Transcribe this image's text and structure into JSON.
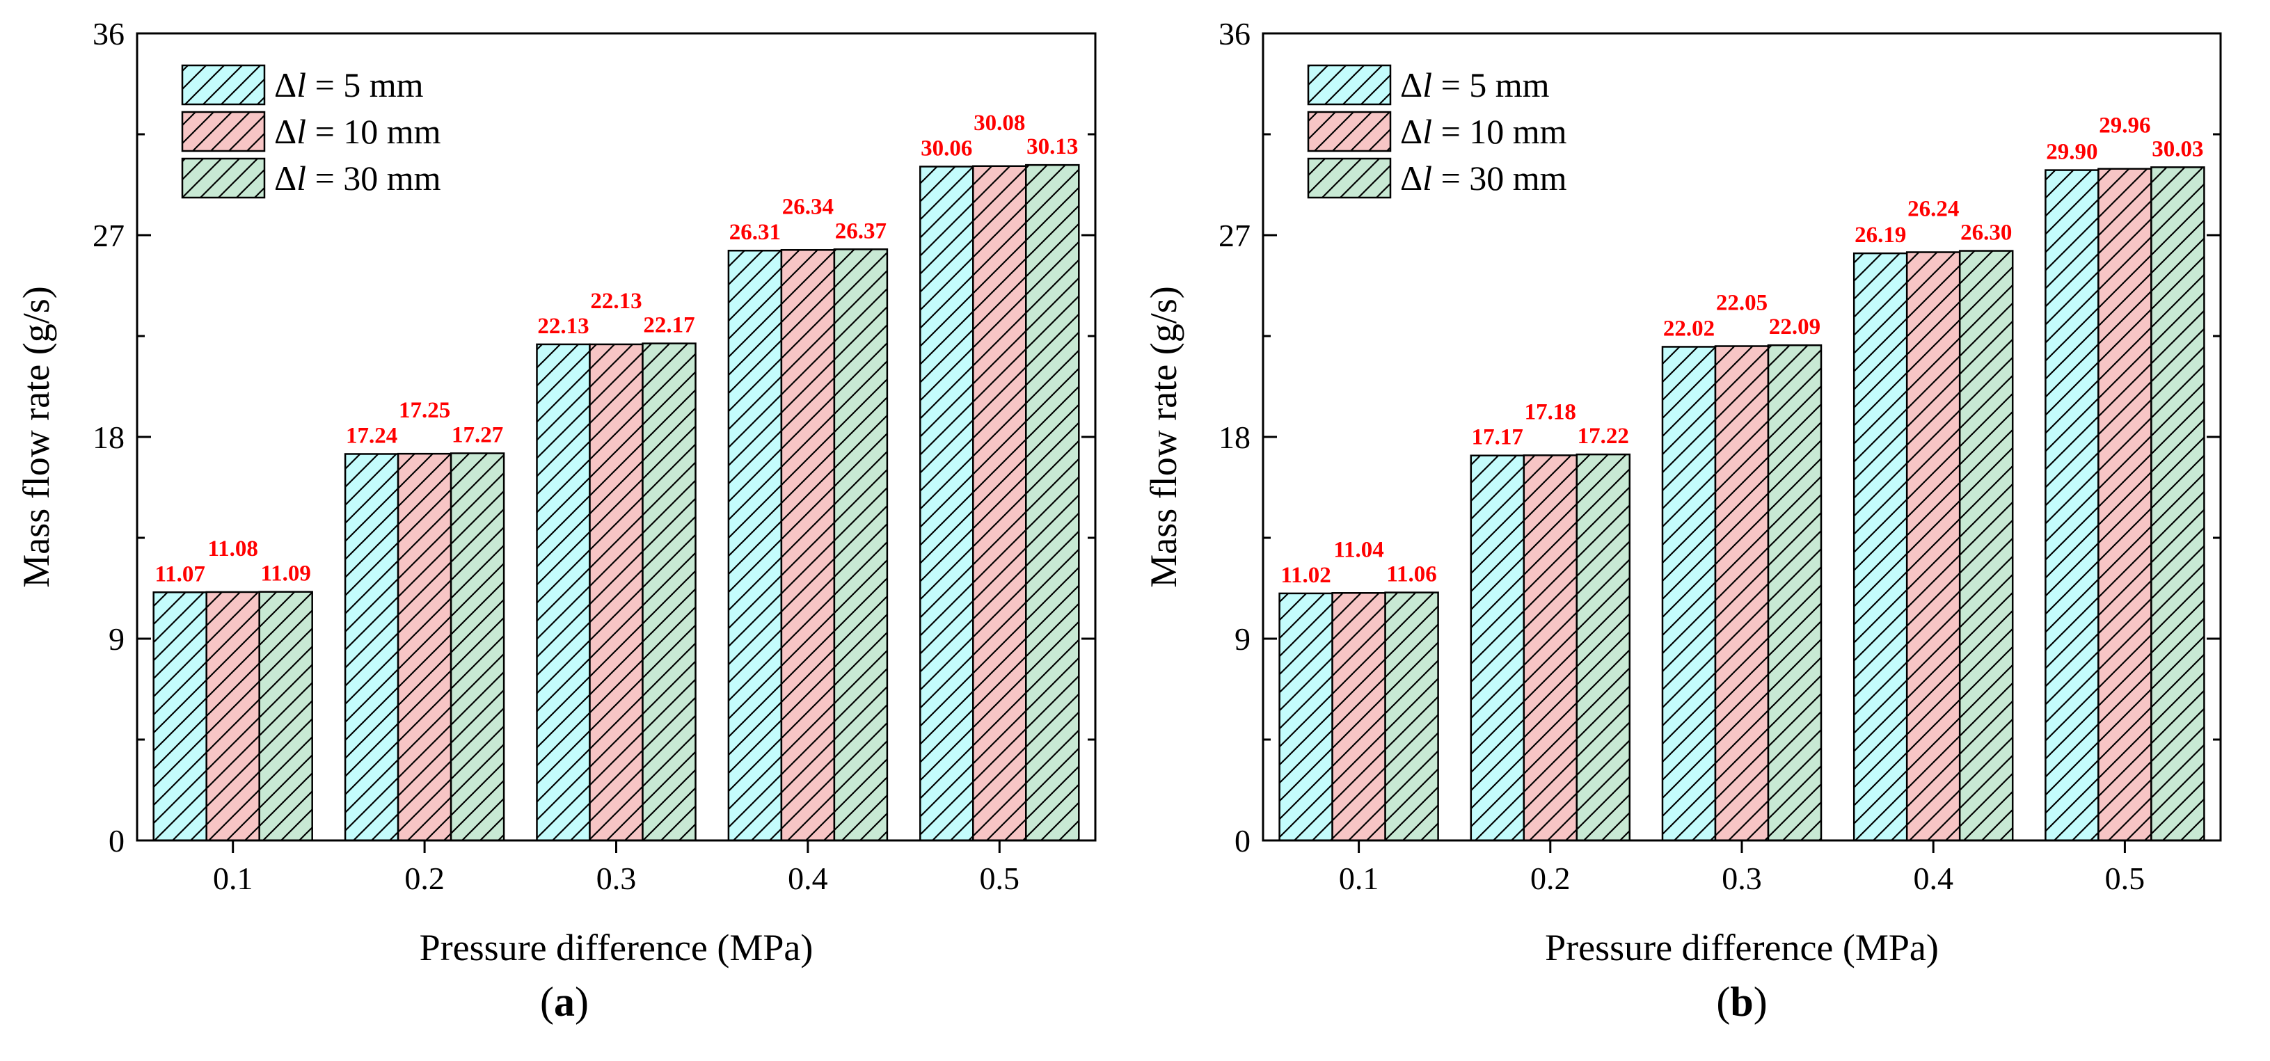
{
  "chart_data": [
    {
      "type": "bar",
      "panel_label": "a",
      "title": "",
      "xlabel": "Pressure difference (MPa)",
      "ylabel": "Mass flow rate (g/s)",
      "categories": [
        "0.1",
        "0.2",
        "0.3",
        "0.4",
        "0.5"
      ],
      "ylim": [
        0,
        36
      ],
      "yticks": [
        "0",
        "9",
        "18",
        "27",
        "36"
      ],
      "series": [
        {
          "name_prefix": "Δ",
          "name_var": "l",
          "name_suffix": " = 5 mm",
          "color": "#c4fcfc",
          "values": [
            11.07,
            17.24,
            22.13,
            26.31,
            30.06
          ],
          "labels": [
            "11.07",
            "17.24",
            "22.13",
            "26.31",
            "30.06"
          ]
        },
        {
          "name_prefix": "Δ",
          "name_var": "l",
          "name_suffix": " = 10 mm",
          "color": "#f7c5c5",
          "values": [
            11.08,
            17.25,
            22.13,
            26.34,
            30.08
          ],
          "labels": [
            "11.08",
            "17.25",
            "22.13",
            "26.34",
            "30.08"
          ]
        },
        {
          "name_prefix": "Δ",
          "name_var": "l",
          "name_suffix": " = 30 mm",
          "color": "#c8e9d4",
          "values": [
            11.09,
            17.27,
            22.17,
            26.37,
            30.13
          ],
          "labels": [
            "11.09",
            "17.27",
            "22.17",
            "26.37",
            "30.13"
          ]
        }
      ],
      "legend_position": "top-left",
      "grid": false
    },
    {
      "type": "bar",
      "panel_label": "b",
      "title": "",
      "xlabel": "Pressure difference (MPa)",
      "ylabel": "Mass flow rate (g/s)",
      "categories": [
        "0.1",
        "0.2",
        "0.3",
        "0.4",
        "0.5"
      ],
      "ylim": [
        0,
        36
      ],
      "yticks": [
        "0",
        "9",
        "18",
        "27",
        "36"
      ],
      "series": [
        {
          "name_prefix": "Δ",
          "name_var": "l",
          "name_suffix": " = 5 mm",
          "color": "#c4fcfc",
          "values": [
            11.02,
            17.17,
            22.02,
            26.19,
            29.9
          ],
          "labels": [
            "11.02",
            "17.17",
            "22.02",
            "26.19",
            "29.90"
          ]
        },
        {
          "name_prefix": "Δ",
          "name_var": "l",
          "name_suffix": " = 10 mm",
          "color": "#f7c5c5",
          "values": [
            11.04,
            17.18,
            22.05,
            26.24,
            29.96
          ],
          "labels": [
            "11.04",
            "17.18",
            "22.05",
            "26.24",
            "29.96"
          ]
        },
        {
          "name_prefix": "Δ",
          "name_var": "l",
          "name_suffix": " = 30 mm",
          "color": "#c8e9d4",
          "values": [
            11.06,
            17.22,
            22.09,
            26.3,
            30.03
          ],
          "labels": [
            "11.06",
            "17.22",
            "22.09",
            "26.30",
            "30.03"
          ]
        }
      ],
      "legend_position": "top-left",
      "grid": false
    }
  ]
}
